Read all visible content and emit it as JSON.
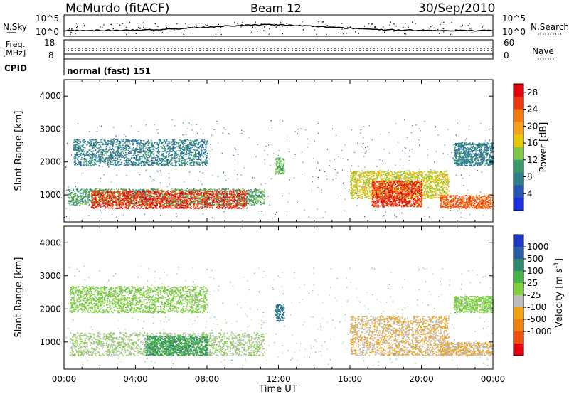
{
  "header": {
    "station": "McMurdo (fitACF)",
    "beam": "Beam 12",
    "date": "30/Sep/2010"
  },
  "noise_panel": {
    "left_label": "N.Sky",
    "right_label": "N.Search",
    "left_ticks": [
      "10^5",
      "10^0"
    ],
    "right_ticks": [
      "10^5",
      "10^0"
    ]
  },
  "freq_panel": {
    "left_label": "Freq.",
    "left_unit": "[MHz]",
    "right_label": "Nave",
    "left_ticks": [
      "18",
      "8"
    ],
    "right_ticks": [
      "60",
      "0"
    ]
  },
  "cpid": {
    "label": "CPID",
    "value": "normal (fast) 151"
  },
  "colors": {
    "power_scale": [
      "#1a2ee6",
      "#2556b4",
      "#2f7f8c",
      "#3a9a6a",
      "#7dc846",
      "#e6c800",
      "#f7a020",
      "#f47a10",
      "#ee3a0e",
      "#e6000e"
    ],
    "velocity_scale": [
      "#1c38c8",
      "#2a5ea8",
      "#2f8a6e",
      "#46b446",
      "#7fd03a",
      "#bdbdbd",
      "#f0a010",
      "#f08010",
      "#f05010",
      "#e60010"
    ]
  },
  "chart_data": [
    {
      "type": "heatmap",
      "name": "power",
      "ylabel": "Slant Range [km]",
      "xlabel": "",
      "x_range_hours": [
        0,
        24
      ],
      "ylim": [
        180,
        4500
      ],
      "y_ticks": [
        1000,
        2000,
        3000,
        4000
      ],
      "colorbar_label": "Power [dB]",
      "colorbar_ticks": [
        4,
        8,
        12,
        16,
        20,
        24,
        28
      ],
      "colorbar_range": [
        0,
        30
      ],
      "regions": [
        {
          "t0": 0.2,
          "t1": 11.2,
          "r0": 700,
          "r1": 1200,
          "value": 11
        },
        {
          "t0": 1.5,
          "t1": 10.2,
          "r0": 600,
          "r1": 1150,
          "value": 26
        },
        {
          "t0": 0.5,
          "t1": 8.0,
          "r0": 1900,
          "r1": 2700,
          "value": 8
        },
        {
          "t0": 11.8,
          "t1": 12.3,
          "r0": 1650,
          "r1": 2150,
          "value": 12
        },
        {
          "t0": 16.0,
          "t1": 21.5,
          "r0": 900,
          "r1": 1750,
          "value": 16
        },
        {
          "t0": 17.2,
          "t1": 20.0,
          "r0": 650,
          "r1": 1450,
          "value": 26
        },
        {
          "t0": 21.0,
          "t1": 24.0,
          "r0": 600,
          "r1": 1000,
          "value": 24
        },
        {
          "t0": 21.8,
          "t1": 24.0,
          "r0": 1900,
          "r1": 2600,
          "value": 8
        }
      ]
    },
    {
      "type": "heatmap",
      "name": "velocity",
      "ylabel": "Slant Range [km]",
      "xlabel": "Time UT",
      "x_range_hours": [
        0,
        24
      ],
      "x_tick_labels": [
        "00:00",
        "04:00",
        "08:00",
        "12:00",
        "16:00",
        "20:00",
        "00:00"
      ],
      "ylim": [
        180,
        4500
      ],
      "y_ticks": [
        1000,
        2000,
        3000,
        4000
      ],
      "colorbar_label": "Velocity [m s^-1]",
      "colorbar_ticks": [
        1000,
        500,
        100,
        25,
        -25,
        -100,
        -500,
        -1000
      ],
      "regions": [
        {
          "t0": 0.3,
          "t1": 11.2,
          "r0": 600,
          "r1": 1300,
          "value": -25
        },
        {
          "t0": 4.5,
          "t1": 8.0,
          "r0": 600,
          "r1": 1200,
          "value": 100
        },
        {
          "t0": 0.3,
          "t1": 8.0,
          "r0": 1900,
          "r1": 2700,
          "value": 0
        },
        {
          "t0": 11.8,
          "t1": 12.3,
          "r0": 1650,
          "r1": 2150,
          "value": 500
        },
        {
          "t0": 16.0,
          "t1": 21.5,
          "r0": 600,
          "r1": 1800,
          "value": -100
        },
        {
          "t0": 21.0,
          "t1": 24.0,
          "r0": 600,
          "r1": 1000,
          "value": -100
        },
        {
          "t0": 21.8,
          "t1": 24.0,
          "r0": 1900,
          "r1": 2400,
          "value": 0
        }
      ]
    }
  ]
}
